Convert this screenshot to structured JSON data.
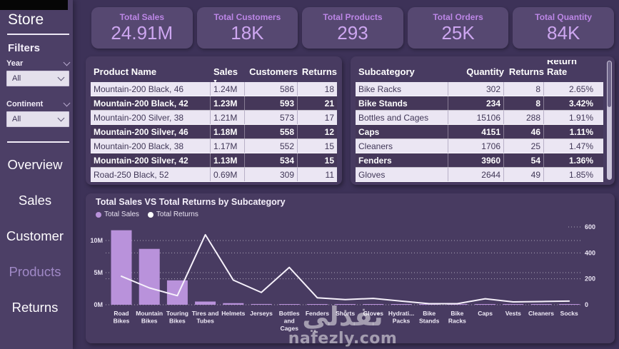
{
  "colors": {
    "page_bg": "#3D3258",
    "sidebar_bg": "#4C3F66",
    "card_bg": "#564871",
    "panel_bg": "#483B61",
    "kpi_title": "#BC86E6",
    "kpi_value": "#CDA6F0",
    "bar": "#B992DB",
    "line": "#F6F1FB",
    "row_light_bg": "#EBE6F3",
    "row_dark_bg": "#453759",
    "nav_active_text": "#A089C7"
  },
  "sidebar": {
    "title": "Store",
    "filters_label": "Filters",
    "filters": [
      {
        "label": "Year",
        "value": "All"
      },
      {
        "label": "Continent",
        "value": "All"
      }
    ],
    "nav": [
      {
        "label": "Overview",
        "active": false
      },
      {
        "label": "Sales",
        "active": false
      },
      {
        "label": "Customer",
        "active": false
      },
      {
        "label": "Products",
        "active": true
      },
      {
        "label": "Returns",
        "active": false
      }
    ]
  },
  "kpis": [
    {
      "title": "Total Sales",
      "value": "24.91M"
    },
    {
      "title": "Total Customers",
      "value": "18K"
    },
    {
      "title": "Total Products",
      "value": "293"
    },
    {
      "title": "Total Orders",
      "value": "25K"
    },
    {
      "title": "Total Quantity",
      "value": "84K"
    }
  ],
  "products_table": {
    "columns": [
      "Product Name",
      "Sales",
      "Customers",
      "Returns"
    ],
    "sort_column": "Sales",
    "rows": [
      [
        "Mountain-200 Black, 46",
        "1.24M",
        "586",
        "18"
      ],
      [
        "Mountain-200 Black, 42",
        "1.23M",
        "593",
        "21"
      ],
      [
        "Mountain-200 Silver, 38",
        "1.21M",
        "573",
        "17"
      ],
      [
        "Mountain-200 Silver, 46",
        "1.18M",
        "558",
        "12"
      ],
      [
        "Mountain-200 Black, 38",
        "1.17M",
        "552",
        "15"
      ],
      [
        "Mountain-200 Silver, 42",
        "1.13M",
        "534",
        "15"
      ],
      [
        "Road-250 Black, 52",
        "0.69M",
        "309",
        "11"
      ]
    ]
  },
  "subcategory_table": {
    "columns": [
      "Subcategory",
      "Quantity",
      "Returns",
      "Return Rate"
    ],
    "sort_column": "",
    "rows": [
      [
        "Bike Racks",
        "302",
        "8",
        "2.65%"
      ],
      [
        "Bike Stands",
        "234",
        "8",
        "3.42%"
      ],
      [
        "Bottles and Cages",
        "15106",
        "288",
        "1.91%"
      ],
      [
        "Caps",
        "4151",
        "46",
        "1.11%"
      ],
      [
        "Cleaners",
        "1706",
        "25",
        "1.47%"
      ],
      [
        "Fenders",
        "3960",
        "54",
        "1.36%"
      ],
      [
        "Gloves",
        "2644",
        "49",
        "1.85%"
      ]
    ]
  },
  "chart_data": {
    "type": "combo-bar-line",
    "title": "Total Sales VS Total Returns by Subcategory",
    "categories": [
      "Road Bikes",
      "Mountain Bikes",
      "Touring Bikes",
      "Tires and Tubes",
      "Helmets",
      "Jerseys",
      "Bottles and Cages",
      "Fenders",
      "Shorts",
      "Gloves",
      "Hydration Packs",
      "Bike Stands",
      "Bike Racks",
      "Caps",
      "Vests",
      "Cleaners",
      "Socks"
    ],
    "tick_lines": [
      [
        "Road",
        "Bikes"
      ],
      [
        "Mountain",
        "Bikes"
      ],
      [
        "Touring",
        "Bikes"
      ],
      [
        "Tires and",
        "Tubes"
      ],
      [
        "Helmets"
      ],
      [
        "Jerseys"
      ],
      [
        "Bottles",
        "and",
        "Cages"
      ],
      [
        "Fenders"
      ],
      [
        "Shorts"
      ],
      [
        "Gloves"
      ],
      [
        "Hydrati...",
        "Packs"
      ],
      [
        "Bike",
        "Stands"
      ],
      [
        "Bike",
        "Racks"
      ],
      [
        "Caps"
      ],
      [
        "Vests"
      ],
      [
        "Cleaners"
      ],
      [
        "Socks"
      ]
    ],
    "series": [
      {
        "name": "Total Sales",
        "type": "bar",
        "axis": "left",
        "unit": "M",
        "values": [
          11.6,
          8.7,
          3.8,
          0.5,
          0.25,
          0.12,
          0.08,
          0.06,
          0.07,
          0.05,
          0.05,
          0.04,
          0.04,
          0.03,
          0.04,
          0.02,
          0.02
        ]
      },
      {
        "name": "Total Returns",
        "type": "line",
        "axis": "right",
        "values": [
          220,
          130,
          70,
          540,
          190,
          95,
          288,
          54,
          40,
          49,
          28,
          8,
          8,
          46,
          22,
          25,
          28
        ]
      }
    ],
    "left_axis": {
      "tick_labels": [
        "10M",
        "5M",
        "0M"
      ],
      "tick_values": [
        10,
        5,
        0
      ],
      "max": 13
    },
    "right_axis": {
      "tick_labels": [
        "600",
        "400",
        "200",
        "0"
      ],
      "tick_values": [
        600,
        400,
        200,
        0
      ],
      "max": 650
    },
    "legend": [
      {
        "label": "Total Sales",
        "color": "#B992DB"
      },
      {
        "label": "Total Returns",
        "color": "#FFFFFF"
      }
    ],
    "grid": "dotted-horizontal",
    "legend_position": "top-left"
  },
  "watermark": {
    "arabic": "نفذلي",
    "url": "nafezly.com"
  }
}
